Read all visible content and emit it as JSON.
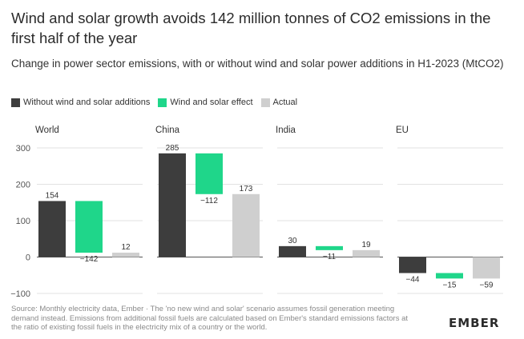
{
  "title": "Wind and solar growth avoids 142 million tonnes of CO2 emissions in the first half of the year",
  "subtitle": "Change in power sector emissions, with or without wind and solar power additions in H1-2023 (MtCO2)",
  "legend": [
    {
      "label": "Without wind and solar additions",
      "color": "#3d3d3d"
    },
    {
      "label": "Wind and solar effect",
      "color": "#1fd68a"
    },
    {
      "label": "Actual",
      "color": "#cfcfcf"
    }
  ],
  "colors": {
    "without": "#3d3d3d",
    "effect": "#1fd68a",
    "actual": "#cfcfcf",
    "grid": "#d9d9d9",
    "zero": "#555555"
  },
  "chart_data": {
    "type": "bar",
    "subtype": "waterfall-panels",
    "ylim": [
      -100,
      300
    ],
    "yticks": [
      300,
      200,
      100,
      0,
      -100
    ],
    "grid": true,
    "legend_position": "top-left",
    "series_names": [
      "Without wind and solar additions",
      "Wind and solar effect",
      "Actual"
    ],
    "panels": [
      {
        "name": "World",
        "without": 154,
        "effect": -142,
        "actual": 12,
        "labels": {
          "without": "154",
          "effect": "−142",
          "actual": "12"
        }
      },
      {
        "name": "China",
        "without": 285,
        "effect": -112,
        "actual": 173,
        "labels": {
          "without": "285",
          "effect": "−112",
          "actual": "173"
        }
      },
      {
        "name": "India",
        "without": 30,
        "effect": -11,
        "actual": 19,
        "labels": {
          "without": "30",
          "effect": "−11",
          "actual": "19"
        }
      },
      {
        "name": "EU",
        "without": -44,
        "effect": -15,
        "actual": -59,
        "labels": {
          "without": "−44",
          "effect": "−15",
          "actual": "−59"
        }
      }
    ]
  },
  "source": "Source: Monthly electricity data, Ember · The 'no new wind and solar' scenario assumes fossil generation meeting demand instead. Emissions from additional fossil fuels are calculated based on Ember's standard emissions factors at the ratio of existing fossil fuels in the electricity mix of a country or the world.",
  "logo": "EMBER"
}
